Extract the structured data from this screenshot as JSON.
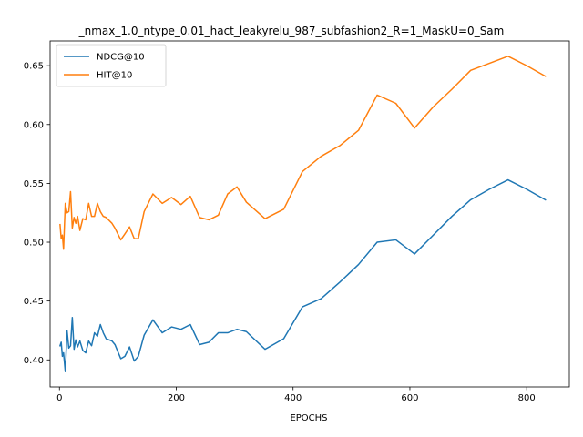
{
  "chart_data": {
    "type": "line",
    "title": "_nmax_1.0_ntype_0.01_hact_leakyrelu_987_subfashion2_R=1_MaskU=0_Sam",
    "xlabel": "EPOCHS",
    "ylabel": "",
    "xlim": [
      -16,
      873
    ],
    "ylim": [
      0.377,
      0.671
    ],
    "xticks": [
      0,
      200,
      400,
      600,
      800
    ],
    "xtick_labels": [
      "0",
      "200",
      "400",
      "600",
      "800"
    ],
    "yticks": [
      0.4,
      0.45,
      0.5,
      0.55,
      0.6,
      0.65
    ],
    "ytick_labels": [
      "0.40",
      "0.45",
      "0.50",
      "0.55",
      "0.60",
      "0.65"
    ],
    "grid": false,
    "legend_position": "upper-left",
    "series": [
      {
        "name": "NDCG@10",
        "color": "#1f77b4",
        "x": [
          1,
          3,
          5,
          7,
          10,
          13,
          16,
          19,
          22,
          25,
          28,
          31,
          35,
          40,
          45,
          50,
          55,
          60,
          65,
          70,
          75,
          80,
          90,
          95,
          105,
          112,
          120,
          128,
          135,
          145,
          160,
          176,
          192,
          208,
          224,
          240,
          256,
          272,
          288,
          304,
          320,
          352,
          384,
          416,
          448,
          480,
          512,
          544,
          576,
          608,
          640,
          672,
          704,
          736,
          768,
          800,
          832
        ],
        "y": [
          0.412,
          0.415,
          0.403,
          0.406,
          0.39,
          0.425,
          0.41,
          0.412,
          0.436,
          0.409,
          0.417,
          0.411,
          0.416,
          0.408,
          0.406,
          0.416,
          0.412,
          0.423,
          0.42,
          0.43,
          0.423,
          0.418,
          0.416,
          0.413,
          0.401,
          0.403,
          0.411,
          0.399,
          0.403,
          0.421,
          0.434,
          0.423,
          0.428,
          0.426,
          0.43,
          0.413,
          0.415,
          0.423,
          0.423,
          0.426,
          0.424,
          0.409,
          0.418,
          0.445,
          0.452,
          0.466,
          0.481,
          0.5,
          0.502,
          0.49,
          0.506,
          0.522,
          0.536,
          0.545,
          0.553,
          0.545,
          0.536
        ]
      },
      {
        "name": "HIT@10",
        "color": "#ff7f0e",
        "x": [
          1,
          3,
          5,
          7,
          10,
          13,
          16,
          19,
          22,
          25,
          28,
          31,
          35,
          40,
          45,
          50,
          55,
          60,
          65,
          70,
          75,
          80,
          90,
          95,
          105,
          112,
          120,
          128,
          135,
          145,
          160,
          176,
          192,
          208,
          224,
          240,
          256,
          272,
          288,
          304,
          320,
          352,
          384,
          416,
          448,
          480,
          512,
          544,
          576,
          608,
          640,
          672,
          704,
          736,
          768,
          800,
          832
        ],
        "y": [
          0.515,
          0.503,
          0.506,
          0.494,
          0.533,
          0.525,
          0.526,
          0.543,
          0.512,
          0.521,
          0.516,
          0.522,
          0.51,
          0.52,
          0.519,
          0.533,
          0.522,
          0.522,
          0.533,
          0.526,
          0.522,
          0.521,
          0.516,
          0.512,
          0.502,
          0.507,
          0.513,
          0.503,
          0.503,
          0.526,
          0.541,
          0.533,
          0.538,
          0.532,
          0.539,
          0.521,
          0.519,
          0.523,
          0.541,
          0.547,
          0.534,
          0.52,
          0.528,
          0.56,
          0.573,
          0.582,
          0.595,
          0.625,
          0.618,
          0.597,
          0.615,
          0.63,
          0.646,
          0.652,
          0.658,
          0.65,
          0.641
        ]
      }
    ]
  }
}
